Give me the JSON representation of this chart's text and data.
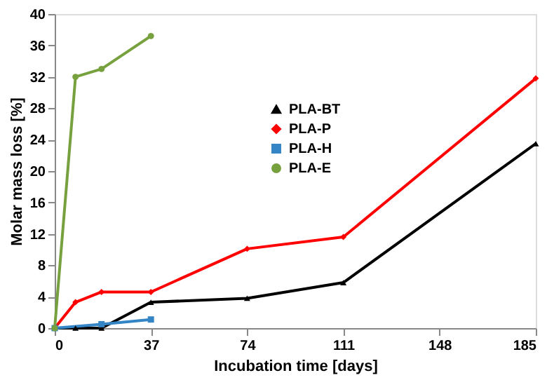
{
  "chart_data": {
    "type": "line",
    "xlabel": "Incubation  time  [days]",
    "ylabel": "Molar mass  loss  [%]",
    "xlim": [
      0,
      185
    ],
    "xticks": [
      0,
      37,
      74,
      111,
      148,
      185
    ],
    "ylim": [
      0,
      40
    ],
    "yticks": [
      0,
      4,
      8,
      12,
      16,
      20,
      24,
      28,
      32,
      36,
      40
    ],
    "grid": false,
    "legend": "right",
    "line_style": "solid",
    "series": [
      {
        "name": "PLA-BT",
        "color": "#000000",
        "marker": "triangle",
        "x": [
          0,
          8,
          18,
          37,
          74,
          111,
          185
        ],
        "values": [
          0,
          0,
          0,
          3.3,
          3.8,
          5.8,
          23.5
        ]
      },
      {
        "name": "PLA-P",
        "color": "#ff0000",
        "marker": "diamond",
        "x": [
          0,
          8,
          18,
          37,
          74,
          111,
          185
        ],
        "values": [
          0,
          3.3,
          4.6,
          4.6,
          10.1,
          11.6,
          31.8
        ]
      },
      {
        "name": "PLA-H",
        "color": "#3385c6",
        "marker": "square",
        "x": [
          0,
          18,
          37
        ],
        "values": [
          0,
          0.5,
          1.1
        ]
      },
      {
        "name": "PLA-E",
        "color": "#77a13e",
        "marker": "circle",
        "x": [
          0,
          8,
          18,
          37
        ],
        "values": [
          0,
          32,
          33,
          37.2
        ]
      }
    ]
  }
}
